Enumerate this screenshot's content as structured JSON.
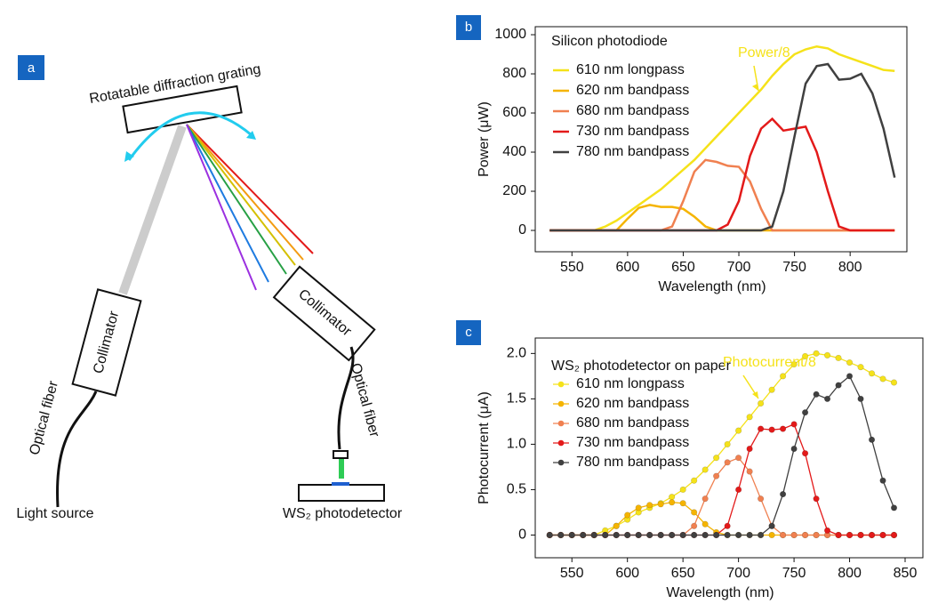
{
  "diagram": {
    "panel_label": "a",
    "grating": "Rotatable diffraction grating",
    "collimator_left": "Collimator",
    "collimator_right": "Collimator",
    "fiber_left": "Optical fiber",
    "fiber_right": "Optical fiber",
    "source": "Light source",
    "detector": "WS₂ photodetector"
  },
  "chart_data": [
    {
      "type": "line",
      "panel_label": "b",
      "title": "Silicon photodiode",
      "x_label": "Wavelength (nm)",
      "y_label": "Power (μW)",
      "annotation": "Power/8",
      "markers": false,
      "xlim": [
        517,
        851
      ],
      "ylim": [
        -109,
        1041
      ],
      "xticks": [
        550,
        600,
        650,
        700,
        750,
        800
      ],
      "yticks": [
        0,
        200,
        400,
        600,
        800,
        1000
      ],
      "x": [
        530,
        540,
        550,
        560,
        570,
        580,
        590,
        600,
        610,
        620,
        630,
        640,
        650,
        660,
        670,
        680,
        690,
        700,
        710,
        720,
        730,
        740,
        750,
        760,
        770,
        780,
        790,
        800,
        810,
        820,
        830,
        840
      ],
      "series": [
        {
          "name": "610 nm longpass",
          "color": "#f5e21a",
          "values": [
            0,
            0,
            0,
            0,
            0,
            20,
            50,
            90,
            130,
            170,
            210,
            260,
            310,
            360,
            420,
            480,
            540,
            600,
            660,
            720,
            790,
            850,
            900,
            925,
            940,
            930,
            900,
            880,
            860,
            840,
            820,
            815
          ]
        },
        {
          "name": "620 nm bandpass",
          "color": "#f5b400",
          "values": [
            0,
            0,
            0,
            0,
            0,
            0,
            0,
            60,
            115,
            130,
            120,
            120,
            110,
            70,
            20,
            0,
            0,
            0,
            0,
            0,
            0,
            0,
            0,
            0,
            0,
            0,
            0,
            0,
            0,
            0,
            0,
            0
          ]
        },
        {
          "name": "680 nm bandpass",
          "color": "#f08050",
          "values": [
            0,
            0,
            0,
            0,
            0,
            0,
            0,
            0,
            0,
            0,
            0,
            20,
            150,
            300,
            360,
            350,
            330,
            325,
            250,
            110,
            0,
            0,
            0,
            0,
            0,
            0,
            0,
            0,
            0,
            0,
            0,
            0
          ]
        },
        {
          "name": "730 nm bandpass",
          "color": "#e31a1a",
          "values": [
            0,
            0,
            0,
            0,
            0,
            0,
            0,
            0,
            0,
            0,
            0,
            0,
            0,
            0,
            0,
            0,
            30,
            150,
            380,
            520,
            570,
            510,
            520,
            530,
            400,
            200,
            20,
            0,
            0,
            0,
            0,
            0
          ]
        },
        {
          "name": "780 nm bandpass",
          "color": "#404040",
          "values": [
            0,
            0,
            0,
            0,
            0,
            0,
            0,
            0,
            0,
            0,
            0,
            0,
            0,
            0,
            0,
            0,
            0,
            0,
            0,
            0,
            20,
            200,
            480,
            750,
            840,
            850,
            770,
            775,
            800,
            700,
            520,
            270
          ]
        }
      ]
    },
    {
      "type": "line",
      "panel_label": "c",
      "title": "WS₂ photodetector on paper",
      "x_label": "Wavelength (nm)",
      "y_label": "Photocurrent (μA)",
      "annotation": "Photocurrent/8",
      "markers": true,
      "xlim": [
        517,
        866
      ],
      "ylim": [
        -0.25,
        2.17
      ],
      "xticks": [
        550,
        600,
        650,
        700,
        750,
        800,
        850
      ],
      "yticks": [
        0,
        0.5,
        {
          "value": 1,
          "label": "1.0"
        },
        1.5,
        {
          "value": 2,
          "label": "2.0"
        }
      ],
      "x": [
        530,
        540,
        550,
        560,
        570,
        580,
        590,
        600,
        610,
        620,
        630,
        640,
        650,
        660,
        670,
        680,
        690,
        700,
        710,
        720,
        730,
        740,
        750,
        760,
        770,
        780,
        790,
        800,
        810,
        820,
        830,
        840
      ],
      "series": [
        {
          "name": "610 nm longpass",
          "color": "#f5e21a",
          "values": [
            0,
            0,
            0,
            0,
            0,
            0.05,
            0.1,
            0.17,
            0.25,
            0.3,
            0.35,
            0.42,
            0.5,
            0.6,
            0.72,
            0.85,
            1.0,
            1.15,
            1.3,
            1.45,
            1.6,
            1.75,
            1.88,
            1.97,
            2.0,
            1.98,
            1.95,
            1.9,
            1.85,
            1.78,
            1.72,
            1.68
          ]
        },
        {
          "name": "620 nm bandpass",
          "color": "#f5b400",
          "values": [
            0,
            0,
            0,
            0,
            0,
            0,
            0.1,
            0.22,
            0.3,
            0.33,
            0.34,
            0.36,
            0.35,
            0.25,
            0.12,
            0.03,
            0,
            0,
            0,
            0,
            0,
            0,
            0,
            0,
            0,
            0,
            0,
            0,
            0,
            0,
            0,
            0
          ]
        },
        {
          "name": "680 nm bandpass",
          "color": "#f08050",
          "values": [
            0,
            0,
            0,
            0,
            0,
            0,
            0,
            0,
            0,
            0,
            0,
            0,
            0,
            0.1,
            0.4,
            0.65,
            0.8,
            0.85,
            0.7,
            0.4,
            0.1,
            0,
            0,
            0,
            0,
            0,
            0,
            0,
            0,
            0,
            0,
            0
          ]
        },
        {
          "name": "730 nm bandpass",
          "color": "#e31a1a",
          "values": [
            0,
            0,
            0,
            0,
            0,
            0,
            0,
            0,
            0,
            0,
            0,
            0,
            0,
            0,
            0,
            0,
            0.1,
            0.5,
            0.95,
            1.17,
            1.16,
            1.17,
            1.22,
            0.9,
            0.4,
            0.05,
            0,
            0,
            0,
            0,
            0,
            0
          ]
        },
        {
          "name": "780 nm bandpass",
          "color": "#404040",
          "values": [
            0,
            0,
            0,
            0,
            0,
            0,
            0,
            0,
            0,
            0,
            0,
            0,
            0,
            0,
            0,
            0,
            0,
            0,
            0,
            0,
            0.1,
            0.45,
            0.95,
            1.35,
            1.55,
            1.5,
            1.65,
            1.75,
            1.5,
            1.05,
            0.6,
            0.3
          ]
        }
      ]
    }
  ]
}
